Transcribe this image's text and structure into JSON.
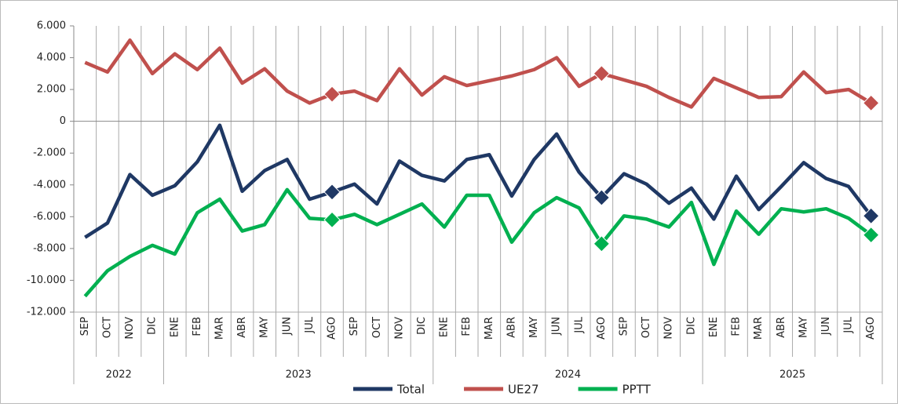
{
  "chart_data": {
    "type": "line",
    "categories": [
      "SEP",
      "OCT",
      "NOV",
      "DIC",
      "ENE",
      "FEB",
      "MAR",
      "ABR",
      "MAY",
      "JUN",
      "JUL",
      "AGO",
      "SEP",
      "OCT",
      "NOV",
      "DIC",
      "ENE",
      "FEB",
      "MAR",
      "ABR",
      "MAY",
      "JUN",
      "JUL",
      "AGO",
      "SEP",
      "OCT",
      "NOV",
      "DIC",
      "ENE",
      "FEB",
      "MAR",
      "ABR",
      "MAY",
      "JUN",
      "JUL",
      "AGO"
    ],
    "groups": [
      "2022",
      null,
      null,
      null,
      "2023",
      null,
      null,
      null,
      null,
      null,
      null,
      null,
      null,
      null,
      null,
      null,
      "2024",
      null,
      null,
      null,
      null,
      null,
      null,
      null,
      null,
      null,
      null,
      null,
      "2025",
      null,
      null,
      null,
      null,
      null,
      null,
      null
    ],
    "series": [
      {
        "name": "Total",
        "color": "#1f3864",
        "values": [
          -7300,
          -6400,
          -3350,
          -4650,
          -4050,
          -2550,
          -250,
          -4400,
          -3100,
          -2400,
          -4900,
          -4450,
          -3950,
          -5200,
          -2500,
          -3400,
          -3750,
          -2400,
          -2100,
          -4700,
          -2400,
          -800,
          -3200,
          -4800,
          -3300,
          -3950,
          -5150,
          -4200,
          -6150,
          -3450,
          -5550,
          -4100,
          -2600,
          -3600,
          -4100,
          -5950
        ]
      },
      {
        "name": "UE27",
        "color": "#c0504d",
        "values": [
          3700,
          3100,
          5100,
          3000,
          4240,
          3250,
          4600,
          2400,
          3300,
          1900,
          1150,
          1700,
          1900,
          1300,
          3300,
          1650,
          2800,
          2250,
          2550,
          2850,
          3250,
          4000,
          2200,
          3000,
          2600,
          2200,
          1500,
          900,
          2700,
          2100,
          1500,
          1550,
          3100,
          1800,
          2000,
          1150
        ]
      },
      {
        "name": "PPTT",
        "color": "#00b050",
        "values": [
          -11000,
          -9400,
          -8500,
          -7800,
          -8350,
          -5750,
          -4900,
          -6900,
          -6500,
          -4300,
          -6100,
          -6200,
          -5850,
          -6500,
          -5850,
          -5200,
          -6650,
          -4650,
          -4650,
          -7600,
          -5750,
          -4800,
          -5450,
          -7700,
          -5950,
          -6150,
          -6650,
          -5100,
          -9000,
          -5650,
          -7100,
          -5500,
          -5700,
          -5500,
          -6100,
          -7150
        ]
      }
    ],
    "ylim": [
      -12000,
      6000
    ],
    "yticks": [
      {
        "value": 6000,
        "label": "6.000"
      },
      {
        "value": 4000,
        "label": "4.000"
      },
      {
        "value": 2000,
        "label": "2.000"
      },
      0,
      {
        "value": -2000,
        "label": "-2.000"
      },
      {
        "value": -4000,
        "label": "-4.000"
      },
      {
        "value": -6000,
        "label": "-6.000"
      },
      {
        "value": -8000,
        "label": "-8.000"
      },
      {
        "value": -10000,
        "label": "-10.000"
      },
      {
        "value": -12000,
        "label": "-12.000"
      }
    ],
    "legend": "bottom"
  }
}
